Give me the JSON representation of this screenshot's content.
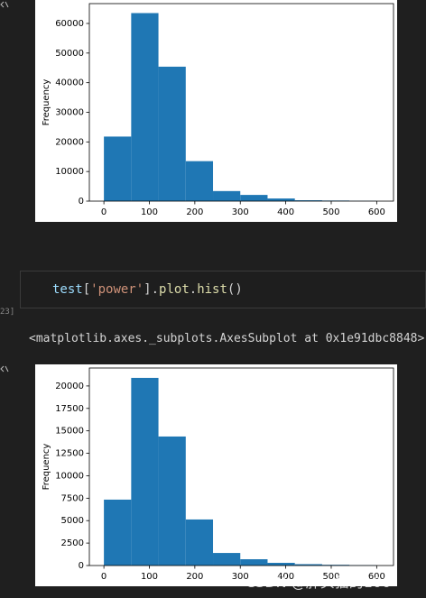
{
  "cells": {
    "prompt": "23]",
    "code_tokens": [
      "test",
      "[",
      "'power'",
      "].",
      "plot",
      ".",
      "hist",
      "()"
    ],
    "output": "<matplotlib.axes._subplots.AxesSubplot at 0x1e91dbc8848>"
  },
  "watermark": "CSDN @胖头猫的100",
  "chart_data": [
    {
      "type": "histogram",
      "ylabel": "Frequency",
      "color": "#1f77b4",
      "bins": [
        0,
        60,
        120,
        180,
        240,
        300,
        360,
        420,
        480,
        540,
        600
      ],
      "values": [
        21800,
        63500,
        45400,
        13500,
        3400,
        2100,
        900,
        300,
        200,
        100
      ],
      "xlim": [
        -32,
        637
      ],
      "ylim": [
        0,
        66700
      ],
      "xticks": [
        0,
        100,
        200,
        300,
        400,
        500,
        600
      ],
      "yticks": [
        0,
        10000,
        20000,
        30000,
        40000,
        50000,
        60000
      ]
    },
    {
      "type": "histogram",
      "ylabel": "Frequency",
      "color": "#1f77b4",
      "bins": [
        0,
        60,
        120,
        180,
        240,
        300,
        360,
        420,
        480,
        540,
        600
      ],
      "values": [
        7340,
        20900,
        14370,
        5130,
        1400,
        700,
        300,
        150,
        80,
        40
      ],
      "xlim": [
        -32,
        637
      ],
      "ylim": [
        0,
        22000
      ],
      "xticks": [
        0,
        100,
        200,
        300,
        400,
        500,
        600
      ],
      "yticks": [
        0,
        2500,
        5000,
        7500,
        10000,
        12500,
        15000,
        17500,
        20000
      ]
    }
  ]
}
